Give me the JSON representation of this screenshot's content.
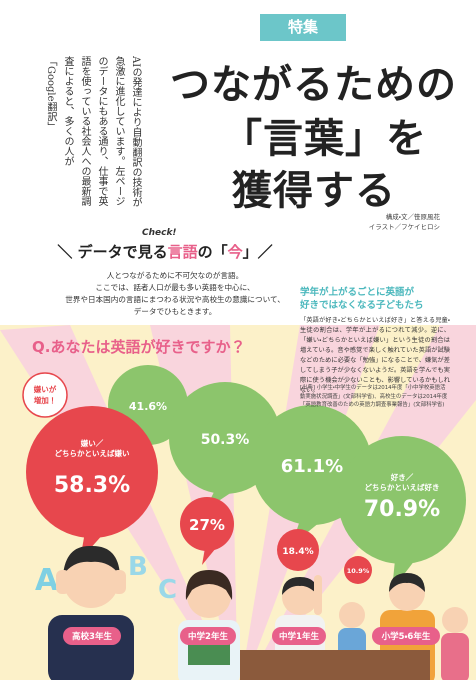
{
  "header": {
    "tag": "特集",
    "title": [
      "つながるための",
      "「言葉」を",
      "獲得する"
    ],
    "lead": "AIの発達により自動翻訳の技術が急激に進化しています。左ページのデータにもある通り、仕事で英語を使っている社会人への最新調査によると、多くの人が「Google翻訳」"
  },
  "credits": [
    "構成・文／笹原風花",
    "イラスト／フケイヒロシ"
  ],
  "section": {
    "check": "Check!",
    "heading": [
      "＼ データで見る",
      "言語",
      "の「",
      "今",
      "」／"
    ],
    "intro": [
      "人とつながるために不可欠なのが言語。",
      "ここでは、話者人口が最も多い英語を中心に、",
      "世界や日本国内の言語にまつわる状況や高校生の意識について、",
      "データでひもときます。"
    ]
  },
  "sidebar": {
    "heading": [
      "学年が上がるごとに英語が",
      "好きではなくなる子どもたち"
    ],
    "body": "「英語が好き・どちらかといえば好き」と答える児童・生徒の割合は、学年が上がるにつれて減少。逆に、「嫌い・どちらかといえば嫌い」という生徒の割合は増えている。音や感覚で楽しく触れていた英語が試験などのために必要な「勉強」になることで、嫌気が差してしまう子が少なくないようだ。英語を学んでも実際に使う機会が少ないことも、影響しているかもしれない。",
    "source": "[出典] 小学生・中学生のデータは2014年度「小中学校英語活動実施状況調査」(文部科学省)、高校生のデータは2014年度「英語教育改善のための英語力調査事業報告」(文部科学省)"
  },
  "survey": {
    "question": "Q.あなたは英語が好きですか？",
    "callout": [
      "嫌いが",
      "増加！"
    ],
    "dislike_label": [
      "嫌い／",
      "どちらかといえば嫌い"
    ],
    "like_label": [
      "好き／",
      "どちらかといえば好き"
    ],
    "decor_letters": [
      "A",
      "B",
      "C"
    ],
    "groups": [
      {
        "grade": "高校3年生",
        "like": "41.6%",
        "dislike": "58.3%"
      },
      {
        "grade": "中学2年生",
        "like": "50.3%",
        "dislike": "27%"
      },
      {
        "grade": "中学1年生",
        "like": "61.1%",
        "dislike": "18.4%"
      },
      {
        "grade": "小学5・6年生",
        "like": "70.9%",
        "dislike": "10.9%"
      }
    ]
  }
}
